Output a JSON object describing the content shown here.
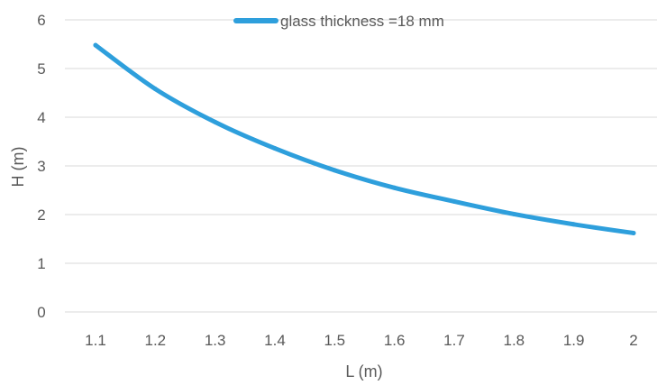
{
  "chart_data": {
    "type": "line",
    "title": "",
    "xlabel": "L (m)",
    "ylabel": "H (m)",
    "x": [
      1.1,
      1.2,
      1.3,
      1.4,
      1.5,
      1.6,
      1.7,
      1.8,
      1.9,
      2.0
    ],
    "x_tick_labels": [
      "1.1",
      "1.2",
      "1.3",
      "1.4",
      "1.5",
      "1.6",
      "1.7",
      "1.8",
      "1.9",
      "2"
    ],
    "y_tick_labels": [
      "0",
      "1",
      "2",
      "3",
      "4",
      "5",
      "6"
    ],
    "ylim": [
      0,
      6
    ],
    "grid": "horizontal",
    "legend_position": "top",
    "series": [
      {
        "name": "glass thickness =18 mm",
        "color": "#2e9fdc",
        "values": [
          5.48,
          4.58,
          3.9,
          3.36,
          2.91,
          2.55,
          2.27,
          2.01,
          1.8,
          1.62
        ]
      }
    ],
    "gridline_color": "#d9d9d9",
    "text_color": "#595959"
  }
}
